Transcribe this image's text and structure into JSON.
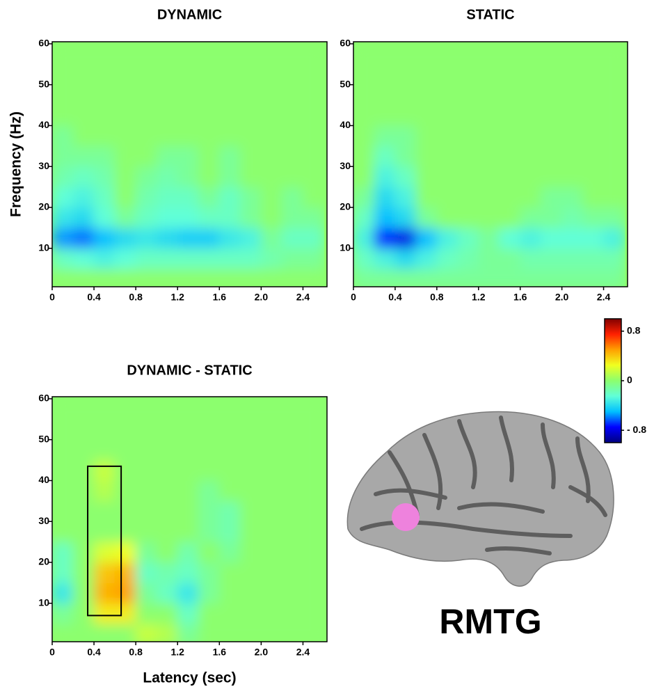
{
  "chart_data": [
    {
      "type": "heatmap",
      "title": "DYNAMIC",
      "y_label": "Frequency (Hz)",
      "x": [
        0.1,
        0.3,
        0.5,
        0.7,
        0.9,
        1.1,
        1.3,
        1.5,
        1.7,
        1.9,
        2.1,
        2.3,
        2.5
      ],
      "y": [
        2.5,
        7.5,
        12.5,
        17.5,
        22.5,
        27.5,
        32.5,
        37.5,
        42.5,
        47.5,
        52.5,
        57.5
      ],
      "z": [
        [
          0,
          0,
          0,
          0,
          0,
          0,
          0,
          0,
          0,
          0,
          0,
          0,
          0
        ],
        [
          -0.2,
          -0.25,
          -0.3,
          -0.25,
          -0.2,
          -0.2,
          -0.2,
          -0.2,
          -0.2,
          -0.2,
          -0.15,
          -0.1,
          -0.1
        ],
        [
          -0.55,
          -0.6,
          -0.5,
          -0.4,
          -0.35,
          -0.4,
          -0.45,
          -0.45,
          -0.35,
          -0.3,
          -0.1,
          -0.2,
          -0.2
        ],
        [
          -0.35,
          -0.4,
          -0.25,
          -0.1,
          -0.2,
          -0.25,
          -0.25,
          -0.2,
          -0.2,
          -0.1,
          0,
          -0.1,
          -0.1
        ],
        [
          -0.25,
          -0.3,
          -0.2,
          0,
          -0.15,
          -0.2,
          -0.2,
          -0.1,
          -0.2,
          -0.1,
          0,
          -0.1,
          0
        ],
        [
          -0.15,
          -0.2,
          -0.15,
          0,
          -0.1,
          -0.15,
          -0.1,
          0,
          -0.1,
          0,
          0,
          0,
          0
        ],
        [
          -0.1,
          -0.1,
          -0.1,
          0,
          0,
          -0.1,
          -0.1,
          0,
          -0.1,
          0,
          0,
          0,
          0
        ],
        [
          -0.1,
          0,
          0,
          0,
          0,
          0,
          0,
          0,
          0,
          0,
          0,
          0,
          0
        ],
        [
          0,
          0,
          0,
          0,
          0,
          0,
          0,
          0,
          0,
          0,
          0,
          0,
          0
        ],
        [
          0,
          0,
          0,
          0,
          0,
          0,
          0,
          0,
          0,
          0,
          0,
          0,
          0
        ],
        [
          0,
          0,
          0,
          0,
          0,
          0,
          0,
          0,
          0,
          0,
          0,
          0,
          0
        ],
        [
          0,
          0,
          0,
          0,
          0,
          0,
          0,
          0,
          0,
          0,
          0,
          0,
          0
        ]
      ],
      "xlim": [
        0,
        2.63
      ],
      "ylim": [
        0.6,
        60.5
      ],
      "xticks": [
        0,
        0.4,
        0.8,
        1.2,
        1.6,
        {
          "value": 2,
          "label": "2.0"
        },
        2.4
      ],
      "yticks": [
        10,
        20,
        30,
        40,
        50,
        60
      ]
    },
    {
      "type": "heatmap",
      "title": "STATIC",
      "x": [
        0.1,
        0.3,
        0.5,
        0.7,
        0.9,
        1.1,
        1.3,
        1.5,
        1.7,
        1.9,
        2.1,
        2.3,
        2.5
      ],
      "y": [
        2.5,
        7.5,
        12.5,
        17.5,
        22.5,
        27.5,
        32.5,
        37.5,
        42.5,
        47.5,
        52.5,
        57.5
      ],
      "z": [
        [
          -0.1,
          -0.1,
          -0.1,
          -0.1,
          -0.1,
          -0.1,
          -0.1,
          -0.1,
          -0.1,
          -0.1,
          -0.1,
          -0.1,
          -0.1
        ],
        [
          -0.2,
          -0.3,
          -0.4,
          -0.3,
          -0.2,
          -0.15,
          -0.1,
          -0.1,
          -0.15,
          -0.15,
          -0.15,
          -0.15,
          -0.15
        ],
        [
          -0.3,
          -0.7,
          -0.8,
          -0.5,
          -0.3,
          -0.2,
          -0.1,
          -0.25,
          -0.3,
          -0.25,
          -0.25,
          -0.25,
          -0.3
        ],
        [
          -0.2,
          -0.5,
          -0.4,
          -0.1,
          0,
          0,
          0,
          0,
          -0.1,
          -0.1,
          -0.15,
          -0.1,
          -0.1
        ],
        [
          -0.1,
          -0.4,
          -0.3,
          0,
          0,
          0,
          0,
          0,
          0,
          -0.1,
          -0.1,
          0,
          0
        ],
        [
          0,
          -0.3,
          -0.2,
          0,
          0,
          0,
          0,
          0,
          0,
          0,
          0,
          0,
          0
        ],
        [
          0,
          -0.2,
          -0.1,
          0,
          0,
          0,
          0,
          0,
          0,
          0,
          0,
          0,
          0
        ],
        [
          0,
          -0.1,
          -0.1,
          0,
          0,
          0,
          0,
          0,
          0,
          0,
          0,
          0,
          0
        ],
        [
          0,
          0,
          0,
          0,
          0,
          0,
          0,
          0,
          0,
          0,
          0,
          0,
          0
        ],
        [
          0,
          0,
          0,
          0,
          0,
          0,
          0,
          0,
          0,
          0,
          0,
          0,
          0
        ],
        [
          0,
          0,
          0,
          0,
          0,
          0,
          0,
          0,
          0,
          0,
          0,
          0,
          0
        ],
        [
          0,
          0,
          0,
          0,
          0,
          0,
          0,
          0,
          0,
          0,
          0,
          0,
          0
        ]
      ],
      "xlim": [
        0,
        2.63
      ],
      "ylim": [
        0.6,
        60.5
      ],
      "xticks": [
        0,
        0.4,
        0.8,
        1.2,
        1.6,
        {
          "value": 2,
          "label": "2.0"
        },
        2.4
      ],
      "yticks": [
        10,
        20,
        30,
        40,
        50,
        60
      ]
    },
    {
      "type": "heatmap",
      "title": "DYNAMIC - STATIC",
      "x_label": "Latency (sec)",
      "x": [
        0.1,
        0.3,
        0.5,
        0.7,
        0.9,
        1.1,
        1.3,
        1.5,
        1.7,
        1.9,
        2.1,
        2.3,
        2.5
      ],
      "y": [
        2.5,
        7.5,
        12.5,
        17.5,
        22.5,
        27.5,
        32.5,
        37.5,
        42.5,
        47.5,
        52.5,
        57.5
      ],
      "z": [
        [
          0,
          0,
          0,
          0,
          0.15,
          0.1,
          -0.1,
          0,
          0,
          0,
          0,
          0,
          0
        ],
        [
          -0.1,
          0,
          0.3,
          0.3,
          0,
          0,
          -0.2,
          0,
          0,
          0,
          0,
          0,
          0
        ],
        [
          -0.35,
          0,
          0.45,
          0.5,
          -0.1,
          -0.2,
          -0.35,
          -0.1,
          0,
          0,
          0,
          0,
          0
        ],
        [
          -0.2,
          0,
          0.4,
          0.45,
          -0.2,
          -0.15,
          -0.2,
          -0.1,
          0,
          0,
          0,
          0,
          0
        ],
        [
          -0.2,
          0,
          0.2,
          0.25,
          -0.1,
          0,
          -0.15,
          0,
          -0.1,
          0,
          0,
          0,
          0
        ],
        [
          0,
          0,
          0,
          0,
          0,
          0,
          0,
          -0.1,
          -0.15,
          0,
          0,
          0,
          0
        ],
        [
          0,
          0,
          0,
          0,
          0,
          0,
          0,
          -0.1,
          -0.15,
          0,
          0,
          0,
          0
        ],
        [
          0,
          0,
          0.1,
          0,
          0,
          0,
          0,
          -0.1,
          0,
          0,
          0,
          0,
          0
        ],
        [
          0,
          0,
          0.15,
          0,
          0,
          0,
          0,
          0,
          0,
          0,
          0,
          0,
          0
        ],
        [
          0,
          0,
          0,
          0,
          0,
          0,
          0,
          0,
          0,
          0,
          0,
          0,
          0
        ],
        [
          0,
          0,
          0,
          0,
          0,
          0,
          0,
          0,
          0,
          0,
          0,
          0,
          0
        ],
        [
          0,
          0,
          0,
          0,
          0,
          0,
          0,
          0,
          0,
          0,
          0,
          0,
          0
        ]
      ],
      "highlight_box": {
        "x": [
          0.34,
          0.66
        ],
        "y": [
          7,
          43.5
        ]
      },
      "xlim": [
        0,
        2.63
      ],
      "ylim": [
        0.6,
        60.5
      ],
      "xticks": [
        0,
        0.4,
        0.8,
        1.2,
        1.6,
        {
          "value": 2,
          "label": "2.0"
        },
        2.4
      ],
      "yticks": [
        10,
        20,
        30,
        40,
        50,
        60
      ]
    }
  ],
  "colorbar": {
    "lim": [
      -1,
      1
    ],
    "ticks": [
      0.8,
      0,
      {
        "value": -0.8,
        "label": "- 0.8"
      }
    ],
    "colormap": [
      "#00007f",
      "#0000ff",
      "#00c0ff",
      "#60ffd8",
      "#8cff6e",
      "#f0ff20",
      "#ffa000",
      "#ff2000",
      "#800000"
    ]
  },
  "region_label": "RMTG"
}
